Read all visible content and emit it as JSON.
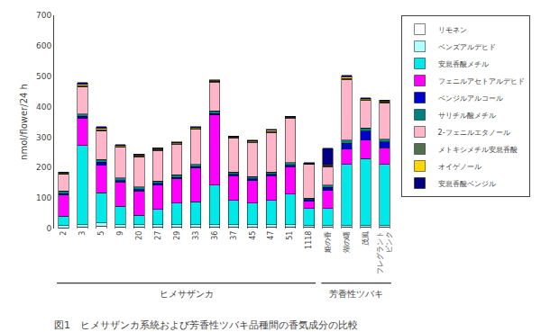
{
  "chart_data": {
    "type": "bar",
    "stacked": true,
    "title": "図1　ヒメサザンカ系統および芳香性ツバキ品種間の香気成分の比較",
    "ylabel": "nmol/flower/24 h",
    "categories": [
      "2",
      "3",
      "5",
      "9",
      "20",
      "27",
      "29",
      "33",
      "36",
      "37",
      "45",
      "47",
      "51",
      "1118",
      "姫の香",
      "湖の曙",
      "茂風",
      "フレグラント\nピンク"
    ],
    "annotations": [
      {
        "text": "ヒメサザンカ",
        "from": "2",
        "to": "1118"
      },
      {
        "text": "芳香性ツバキ",
        "from": "姫の香",
        "to": "フレグラント\nピンク"
      }
    ],
    "series": [
      {
        "name": "リモネン",
        "color": "#ffffff",
        "values": [
          2,
          5,
          8,
          5,
          5,
          5,
          5,
          5,
          5,
          5,
          5,
          5,
          5,
          5,
          5,
          5,
          5,
          5
        ]
      },
      {
        "name": "ベンズアルデヒド",
        "color": "#b0ffff",
        "values": [
          8,
          8,
          10,
          8,
          8,
          8,
          8,
          8,
          8,
          8,
          8,
          8,
          8,
          5,
          5,
          5,
          5,
          5
        ]
      },
      {
        "name": "安息香酸メチル",
        "color": "#00e8e8",
        "values": [
          30,
          260,
          100,
          60,
          30,
          50,
          70,
          75,
          130,
          80,
          70,
          80,
          100,
          55,
          55,
          200,
          220,
          200
        ]
      },
      {
        "name": "フェニルアセトアルデヒド",
        "color": "#ff00ff",
        "values": [
          70,
          90,
          90,
          80,
          80,
          80,
          80,
          110,
          230,
          80,
          75,
          80,
          90,
          25,
          60,
          50,
          60,
          55
        ]
      },
      {
        "name": "ベンジルアルコール",
        "color": "#0000cc",
        "values": [
          5,
          5,
          10,
          5,
          5,
          5,
          5,
          5,
          5,
          5,
          5,
          5,
          5,
          5,
          10,
          20,
          30,
          20
        ]
      },
      {
        "name": "サリチル酸メチル",
        "color": "#008080",
        "values": [
          8,
          8,
          8,
          8,
          8,
          8,
          8,
          8,
          8,
          8,
          8,
          8,
          8,
          5,
          8,
          10,
          10,
          8
        ]
      },
      {
        "name": "2-フェニルエタノール",
        "color": "#ffb6c8",
        "values": [
          55,
          90,
          95,
          100,
          100,
          100,
          100,
          115,
          95,
          110,
          110,
          130,
          145,
          110,
          60,
          200,
          90,
          120
        ]
      },
      {
        "name": "メトキシメチル安息香酸",
        "color": "#507050",
        "values": [
          2,
          3,
          3,
          3,
          3,
          3,
          3,
          3,
          3,
          3,
          3,
          3,
          3,
          2,
          3,
          3,
          3,
          3
        ]
      },
      {
        "name": "オイゲノール",
        "color": "#ffd700",
        "values": [
          3,
          5,
          5,
          3,
          3,
          3,
          3,
          3,
          2,
          2,
          3,
          3,
          2,
          2,
          3,
          5,
          3,
          3
        ]
      },
      {
        "name": "安息香酸ベンジル",
        "color": "#000080",
        "values": [
          2,
          5,
          5,
          3,
          3,
          3,
          3,
          3,
          2,
          2,
          3,
          3,
          2,
          2,
          55,
          5,
          3,
          3
        ]
      }
    ],
    "ylim": [
      0,
      700
    ],
    "yticks": [
      0,
      100,
      200,
      300,
      400,
      500,
      600,
      700
    ],
    "grid": false,
    "legend": "upper right"
  }
}
